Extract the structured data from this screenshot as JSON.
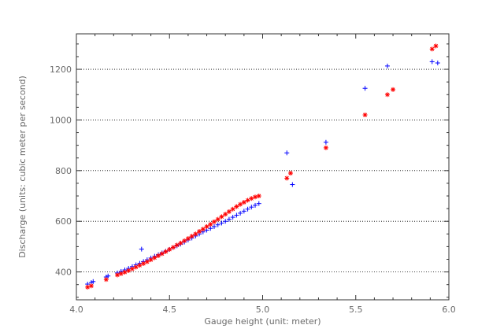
{
  "chart_data": {
    "type": "scatter",
    "title": "",
    "xlabel": "Gauge height (unit: meter)",
    "ylabel": "Discharge (units: cubic meter per second)",
    "xlim": [
      4.0,
      6.0
    ],
    "ylim": [
      290,
      1340
    ],
    "xticks": [
      4.0,
      4.5,
      5.0,
      5.5,
      6.0
    ],
    "xtick_labels": [
      "4.0",
      "4.5",
      "5.0",
      "5.5",
      "6.0"
    ],
    "yticks": [
      400,
      600,
      800,
      1000,
      1200
    ],
    "ytick_labels": [
      "400",
      "600",
      "800",
      "1000",
      "1200"
    ],
    "grid": "horizontal-dotted",
    "legend": "none",
    "series": [
      {
        "color": "#0000ff",
        "marker": "plus",
        "points": [
          [
            4.06,
            352
          ],
          [
            4.08,
            358
          ],
          [
            4.09,
            362
          ],
          [
            4.16,
            380
          ],
          [
            4.17,
            384
          ],
          [
            4.22,
            396
          ],
          [
            4.24,
            402
          ],
          [
            4.26,
            408
          ],
          [
            4.28,
            414
          ],
          [
            4.3,
            421
          ],
          [
            4.32,
            428
          ],
          [
            4.34,
            434
          ],
          [
            4.35,
            490
          ],
          [
            4.36,
            441
          ],
          [
            4.38,
            448
          ],
          [
            4.4,
            455
          ],
          [
            4.42,
            462
          ],
          [
            4.44,
            468
          ],
          [
            4.46,
            475
          ],
          [
            4.48,
            482
          ],
          [
            4.5,
            489
          ],
          [
            4.52,
            496
          ],
          [
            4.54,
            503
          ],
          [
            4.56,
            510
          ],
          [
            4.58,
            518
          ],
          [
            4.6,
            526
          ],
          [
            4.62,
            534
          ],
          [
            4.64,
            542
          ],
          [
            4.66,
            550
          ],
          [
            4.68,
            558
          ],
          [
            4.7,
            565
          ],
          [
            4.72,
            572
          ],
          [
            4.74,
            579
          ],
          [
            4.76,
            586
          ],
          [
            4.78,
            593
          ],
          [
            4.8,
            600
          ],
          [
            4.82,
            608
          ],
          [
            4.84,
            616
          ],
          [
            4.86,
            624
          ],
          [
            4.88,
            632
          ],
          [
            4.9,
            640
          ],
          [
            4.92,
            648
          ],
          [
            4.94,
            656
          ],
          [
            4.96,
            663
          ],
          [
            4.98,
            670
          ],
          [
            5.13,
            870
          ],
          [
            5.16,
            745
          ],
          [
            5.34,
            912
          ],
          [
            5.55,
            1125
          ],
          [
            5.67,
            1213
          ],
          [
            5.91,
            1230
          ],
          [
            5.94,
            1225
          ]
        ]
      },
      {
        "color": "#ff0000",
        "marker": "star",
        "points": [
          [
            4.06,
            340
          ],
          [
            4.08,
            345
          ],
          [
            4.16,
            370
          ],
          [
            4.22,
            388
          ],
          [
            4.24,
            393
          ],
          [
            4.26,
            399
          ],
          [
            4.28,
            405
          ],
          [
            4.3,
            412
          ],
          [
            4.32,
            419
          ],
          [
            4.34,
            426
          ],
          [
            4.36,
            433
          ],
          [
            4.38,
            440
          ],
          [
            4.4,
            448
          ],
          [
            4.42,
            456
          ],
          [
            4.44,
            464
          ],
          [
            4.46,
            472
          ],
          [
            4.48,
            480
          ],
          [
            4.5,
            489
          ],
          [
            4.52,
            497
          ],
          [
            4.54,
            506
          ],
          [
            4.56,
            514
          ],
          [
            4.58,
            523
          ],
          [
            4.6,
            532
          ],
          [
            4.62,
            541
          ],
          [
            4.64,
            550
          ],
          [
            4.66,
            560
          ],
          [
            4.68,
            569
          ],
          [
            4.7,
            579
          ],
          [
            4.72,
            588
          ],
          [
            4.74,
            598
          ],
          [
            4.76,
            608
          ],
          [
            4.78,
            618
          ],
          [
            4.8,
            628
          ],
          [
            4.82,
            638
          ],
          [
            4.84,
            648
          ],
          [
            4.86,
            658
          ],
          [
            4.88,
            667
          ],
          [
            4.9,
            675
          ],
          [
            4.92,
            683
          ],
          [
            4.94,
            690
          ],
          [
            4.96,
            696
          ],
          [
            4.98,
            700
          ],
          [
            5.13,
            770
          ],
          [
            5.15,
            790
          ],
          [
            5.34,
            890
          ],
          [
            5.55,
            1020
          ],
          [
            5.67,
            1100
          ],
          [
            5.7,
            1120
          ],
          [
            5.91,
            1280
          ],
          [
            5.93,
            1292
          ]
        ]
      }
    ]
  }
}
